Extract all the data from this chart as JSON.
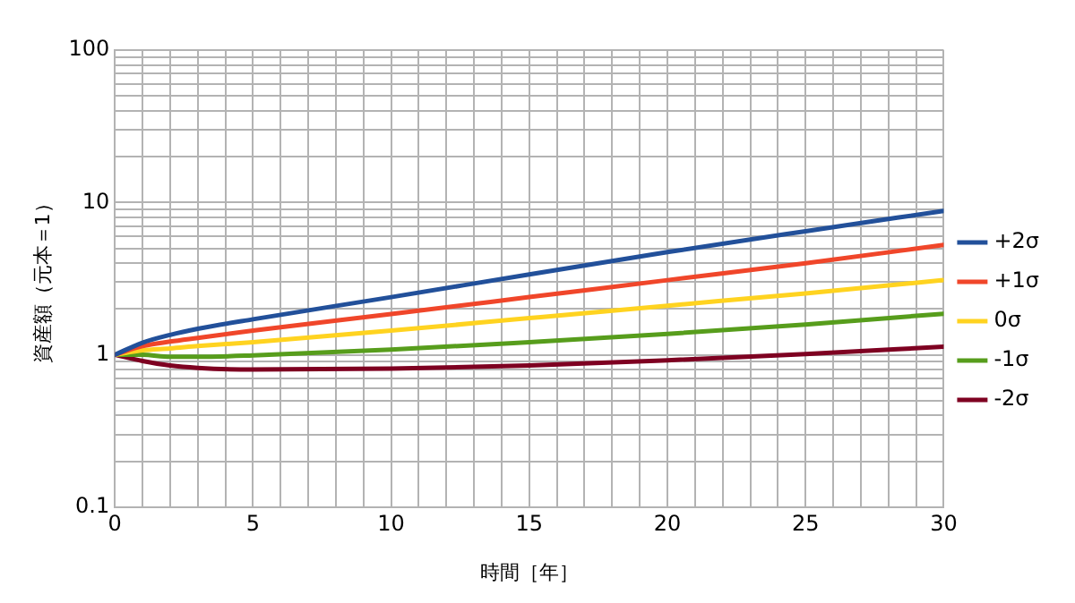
{
  "chart_data": {
    "type": "line",
    "xlabel": "時間［年］",
    "ylabel": "資産額（元本＝1）",
    "x": [
      0,
      1,
      2,
      3,
      5,
      10,
      15,
      20,
      25,
      30
    ],
    "series": [
      {
        "name": "+2σ",
        "color": "#22509a",
        "values": [
          1,
          1.2,
          1.35,
          1.48,
          1.71,
          2.39,
          3.37,
          4.72,
          6.47,
          8.8
        ]
      },
      {
        "name": "+1σ",
        "color": "#f0462a",
        "values": [
          1,
          1.14,
          1.22,
          1.29,
          1.44,
          1.85,
          2.39,
          3.09,
          3.99,
          5.26
        ]
      },
      {
        "name": "0σ",
        "color": "#ffd320",
        "values": [
          1,
          1.07,
          1.1,
          1.14,
          1.21,
          1.44,
          1.74,
          2.1,
          2.53,
          3.09
        ]
      },
      {
        "name": "-1σ",
        "color": "#579d1c",
        "values": [
          1,
          1.0,
          0.97,
          0.97,
          0.99,
          1.08,
          1.21,
          1.37,
          1.58,
          1.86
        ]
      },
      {
        "name": "-2σ",
        "color": "#7e0021",
        "values": [
          1,
          0.91,
          0.85,
          0.82,
          0.8,
          0.81,
          0.85,
          0.92,
          1.01,
          1.13
        ]
      }
    ],
    "xlim": [
      0,
      30
    ],
    "xticks": [
      0,
      {
        "value": 1,
        "label": null
      },
      {
        "value": 2,
        "label": null
      },
      {
        "value": 3,
        "label": null
      },
      {
        "value": 4,
        "label": null
      },
      5,
      {
        "value": 6,
        "label": null
      },
      {
        "value": 7,
        "label": null
      },
      {
        "value": 8,
        "label": null
      },
      {
        "value": 9,
        "label": null
      },
      10,
      {
        "value": 11,
        "label": null
      },
      {
        "value": 12,
        "label": null
      },
      {
        "value": 13,
        "label": null
      },
      {
        "value": 14,
        "label": null
      },
      15,
      {
        "value": 16,
        "label": null
      },
      {
        "value": 17,
        "label": null
      },
      {
        "value": 18,
        "label": null
      },
      {
        "value": 19,
        "label": null
      },
      20,
      {
        "value": 21,
        "label": null
      },
      {
        "value": 22,
        "label": null
      },
      {
        "value": 23,
        "label": null
      },
      {
        "value": 24,
        "label": null
      },
      25,
      {
        "value": 26,
        "label": null
      },
      {
        "value": 27,
        "label": null
      },
      {
        "value": 28,
        "label": null
      },
      {
        "value": 29,
        "label": null
      },
      30
    ],
    "ylim": [
      0.1,
      100
    ],
    "yticks": [
      0.1,
      {
        "value": 0.2,
        "label": null
      },
      {
        "value": 0.3,
        "label": null
      },
      {
        "value": 0.4,
        "label": null
      },
      {
        "value": 0.5,
        "label": null
      },
      {
        "value": 0.6,
        "label": null
      },
      {
        "value": 0.7,
        "label": null
      },
      {
        "value": 0.8,
        "label": null
      },
      {
        "value": 0.9,
        "label": null
      },
      1,
      {
        "value": 2,
        "label": null
      },
      {
        "value": 3,
        "label": null
      },
      {
        "value": 4,
        "label": null
      },
      {
        "value": 5,
        "label": null
      },
      {
        "value": 6,
        "label": null
      },
      {
        "value": 7,
        "label": null
      },
      {
        "value": 8,
        "label": null
      },
      {
        "value": 9,
        "label": null
      },
      10,
      {
        "value": 20,
        "label": null
      },
      {
        "value": 30,
        "label": null
      },
      {
        "value": 40,
        "label": null
      },
      {
        "value": 50,
        "label": null
      },
      {
        "value": 60,
        "label": null
      },
      {
        "value": 70,
        "label": null
      },
      {
        "value": 80,
        "label": null
      },
      {
        "value": 90,
        "label": null
      },
      100
    ],
    "log": "y",
    "grid": true,
    "legend": "right",
    "marker": "none",
    "line_style": "solid"
  }
}
